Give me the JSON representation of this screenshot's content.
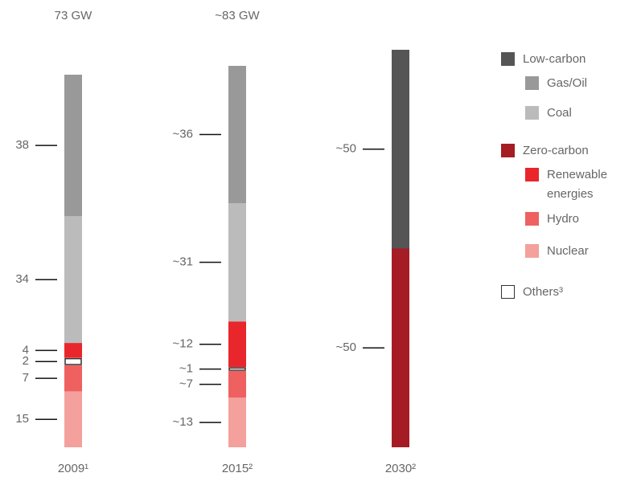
{
  "chart_data": {
    "type": "stacked_bar",
    "categories": [
      "2009¹",
      "2015²",
      "2030²"
    ],
    "totals": [
      "73 GW",
      "~83 GW",
      null
    ],
    "series": [
      {
        "name": "Zero-carbon",
        "color": "#a51c24",
        "values": [
          null,
          null,
          50
        ],
        "value_labels": [
          null,
          null,
          "~50"
        ]
      },
      {
        "name": "Nuclear",
        "color": "#f4a09c",
        "values": [
          15,
          13,
          null
        ],
        "value_labels": [
          "15",
          "~13",
          null
        ]
      },
      {
        "name": "Hydro",
        "color": "#ee6160",
        "values": [
          7,
          7,
          null
        ],
        "value_labels": [
          "7",
          "~7",
          null
        ]
      },
      {
        "name": "Others³",
        "color": "#ffffff",
        "values": [
          2,
          1,
          null
        ],
        "value_labels": [
          "2",
          "~1",
          null
        ]
      },
      {
        "name": "Renewable energies",
        "color": "#e8262b",
        "values": [
          4,
          12,
          null
        ],
        "value_labels": [
          "4",
          "~12",
          null
        ]
      },
      {
        "name": "Coal",
        "color": "#bbbbbb",
        "values": [
          34,
          31,
          null
        ],
        "value_labels": [
          "34",
          "~31",
          null
        ]
      },
      {
        "name": "Gas/Oil",
        "color": "#999999",
        "values": [
          38,
          36,
          null
        ],
        "value_labels": [
          "38",
          "~36",
          null
        ]
      },
      {
        "name": "Low-carbon",
        "color": "#555555",
        "values": [
          null,
          null,
          50
        ],
        "value_labels": [
          null,
          null,
          "~50"
        ]
      }
    ]
  }
}
